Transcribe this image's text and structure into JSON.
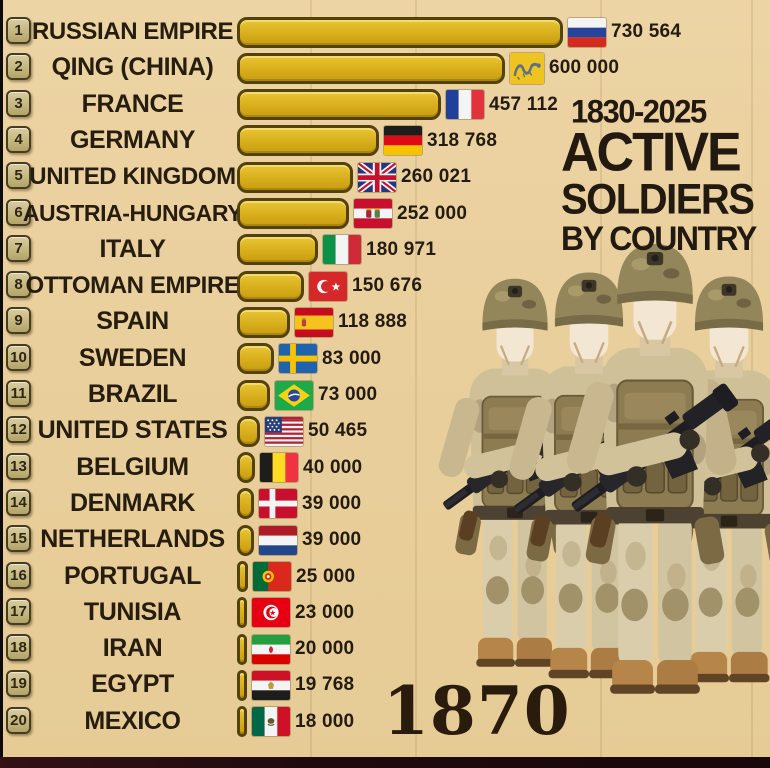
{
  "header": {
    "range": "1830-2025",
    "title_lines": [
      "ACTIVE",
      "SOLDIERS",
      "BY COUNTRY"
    ]
  },
  "year_label": "1870",
  "colors": {
    "background": "#e9cf9c",
    "bar_fill": "#d8ae1c",
    "bar_border": "#53430b",
    "badge_bg": "#c3b57c",
    "text": "#241c10",
    "title_text": "#221a10",
    "bottom_strip": "#200b0c"
  },
  "chart_data": {
    "type": "bar",
    "orientation": "horizontal",
    "title": "ACTIVE SOLDIERS BY COUNTRY",
    "subtitle": "1830-2025",
    "year_shown": "1870",
    "unit": "active soldiers",
    "xlim": [
      0,
      780000
    ],
    "grid": "faint-vertical",
    "legend": "none",
    "ranks": [
      1,
      2,
      3,
      4,
      5,
      6,
      7,
      8,
      9,
      10,
      11,
      12,
      13,
      14,
      15,
      16,
      17,
      18,
      19,
      20
    ],
    "categories": [
      "RUSSIAN EMPIRE",
      "QING (CHINA)",
      "FRANCE",
      "GERMANY",
      "UNITED KINGDOM",
      "AUSTRIA-HUNGARY",
      "ITALY",
      "OTTOMAN EMPIRE",
      "SPAIN",
      "SWEDEN",
      "BRAZIL",
      "UNITED STATES",
      "BELGIUM",
      "DENMARK",
      "NETHERLANDS",
      "PORTUGAL",
      "TUNISIA",
      "IRAN",
      "EGYPT",
      "MEXICO"
    ],
    "values": [
      730564,
      600000,
      457112,
      318768,
      260021,
      252000,
      180971,
      150676,
      118888,
      83000,
      73000,
      50465,
      40000,
      39000,
      39000,
      25000,
      23000,
      20000,
      19768,
      18000
    ],
    "value_labels": [
      "730 564",
      "600 000",
      "457 112",
      "318 768",
      "260 021",
      "252 000",
      "180 971",
      "150 676",
      "118 888",
      "83 000",
      "73 000",
      "50 465",
      "40 000",
      "39 000",
      "39 000",
      "25 000",
      "23 000",
      "20 000",
      "19 768",
      "18 000"
    ],
    "flags": [
      "russian-empire",
      "qing-china",
      "france",
      "germany",
      "united-kingdom",
      "austria-hungary",
      "italy",
      "ottoman-empire",
      "spain",
      "sweden",
      "brazil",
      "united-states",
      "belgium",
      "denmark",
      "netherlands",
      "portugal",
      "tunisia",
      "iran",
      "egypt",
      "mexico"
    ]
  }
}
